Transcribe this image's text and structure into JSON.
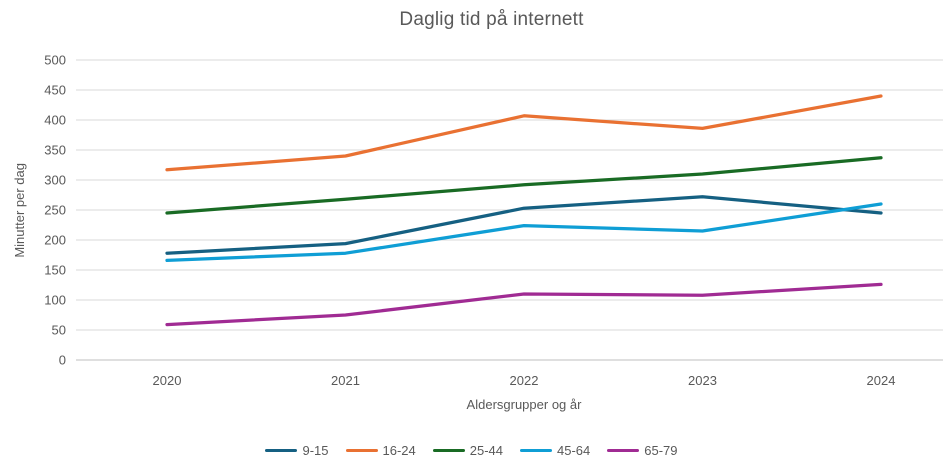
{
  "chart_data": {
    "type": "line",
    "title": "Daglig tid på internett",
    "xlabel": "Aldersgrupper og år",
    "ylabel": "Minutter per dag",
    "categories": [
      "2020",
      "2021",
      "2022",
      "2023",
      "2024"
    ],
    "series": [
      {
        "name": "9-15",
        "color": "#156082",
        "values": [
          178,
          194,
          253,
          272,
          245
        ]
      },
      {
        "name": "16-24",
        "color": "#E97132",
        "values": [
          317,
          340,
          407,
          386,
          440
        ]
      },
      {
        "name": "25-44",
        "color": "#196B24",
        "values": [
          245,
          268,
          292,
          310,
          337
        ]
      },
      {
        "name": "45-64",
        "color": "#0F9ED5",
        "values": [
          166,
          178,
          224,
          215,
          260
        ]
      },
      {
        "name": "65-79",
        "color": "#A02B93",
        "values": [
          59,
          75,
          110,
          108,
          126
        ]
      }
    ],
    "ylim": [
      0,
      500
    ],
    "ytick_step": 50,
    "ytick_labels": [
      "0",
      "50",
      "100",
      "150",
      "200",
      "250",
      "300",
      "350",
      "400",
      "450",
      "500"
    ],
    "grid": "horizontal",
    "legend_position": "bottom",
    "text_color": "#595959",
    "grid_color": "#D9D9D9",
    "axis_line_color": "#BFBFBF"
  }
}
